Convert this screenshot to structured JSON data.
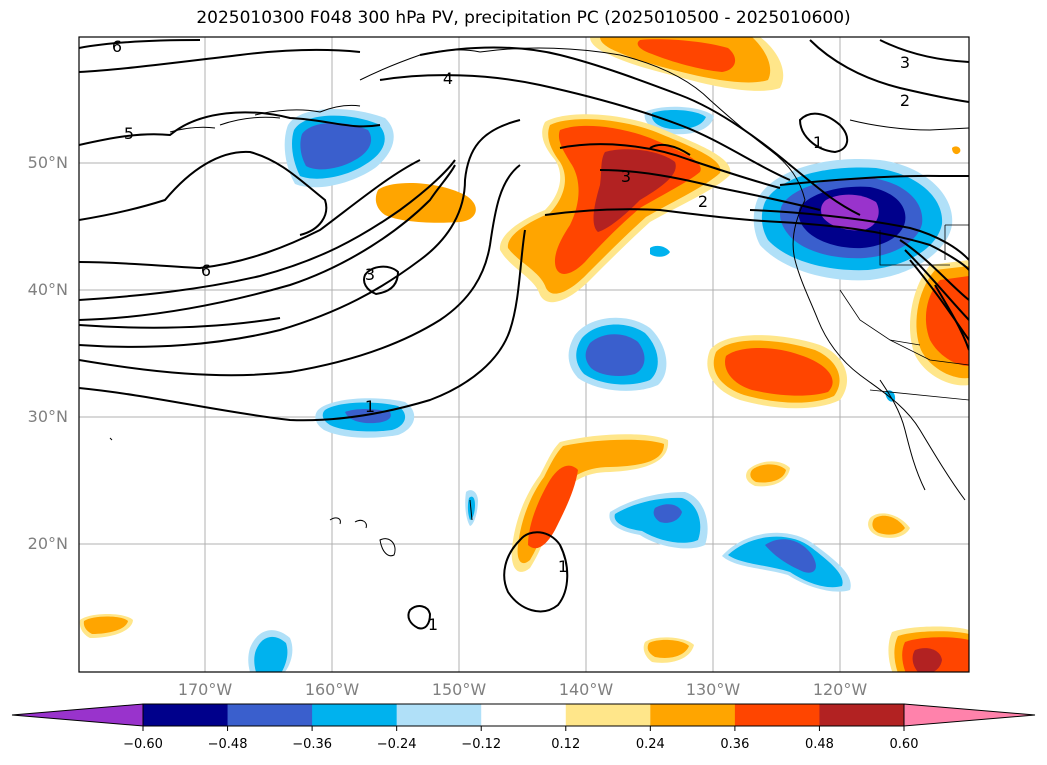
{
  "title": "2025010300 F048 300 hPa PV, precipitation PC (2025010500 - 2025010600)",
  "lat_labels": [
    "50°N",
    "40°N",
    "30°N",
    "20°N"
  ],
  "lon_labels": [
    "170°W",
    "160°W",
    "150°W",
    "140°W",
    "130°W",
    "120°W"
  ],
  "contour_labels": [
    "6",
    "5",
    "4",
    "6",
    "3",
    "1",
    "3",
    "2",
    "1",
    "3",
    "2",
    "1",
    "1"
  ],
  "colorbar": {
    "ticks": [
      "−0.60",
      "−0.48",
      "−0.36",
      "−0.24",
      "−0.12",
      "0.12",
      "0.24",
      "0.36",
      "0.48",
      "0.60"
    ],
    "colors": [
      "#9933cc",
      "#00008b",
      "#3a5fcd",
      "#00b2ee",
      "#b0e0f8",
      "#ffffff",
      "#ffe68a",
      "#ffa500",
      "#ff4500",
      "#b22222",
      "#ff82ab"
    ]
  },
  "fill_colors": {
    "neg_light": "#b0e0f8",
    "neg_mid": "#00b2ee",
    "neg_blue": "#3a5fcd",
    "neg_navy": "#00008b",
    "neg_purple": "#9933cc",
    "pos_light": "#ffe68a",
    "pos_orange": "#ffa500",
    "pos_red": "#ff4500",
    "pos_dark": "#b22222"
  }
}
